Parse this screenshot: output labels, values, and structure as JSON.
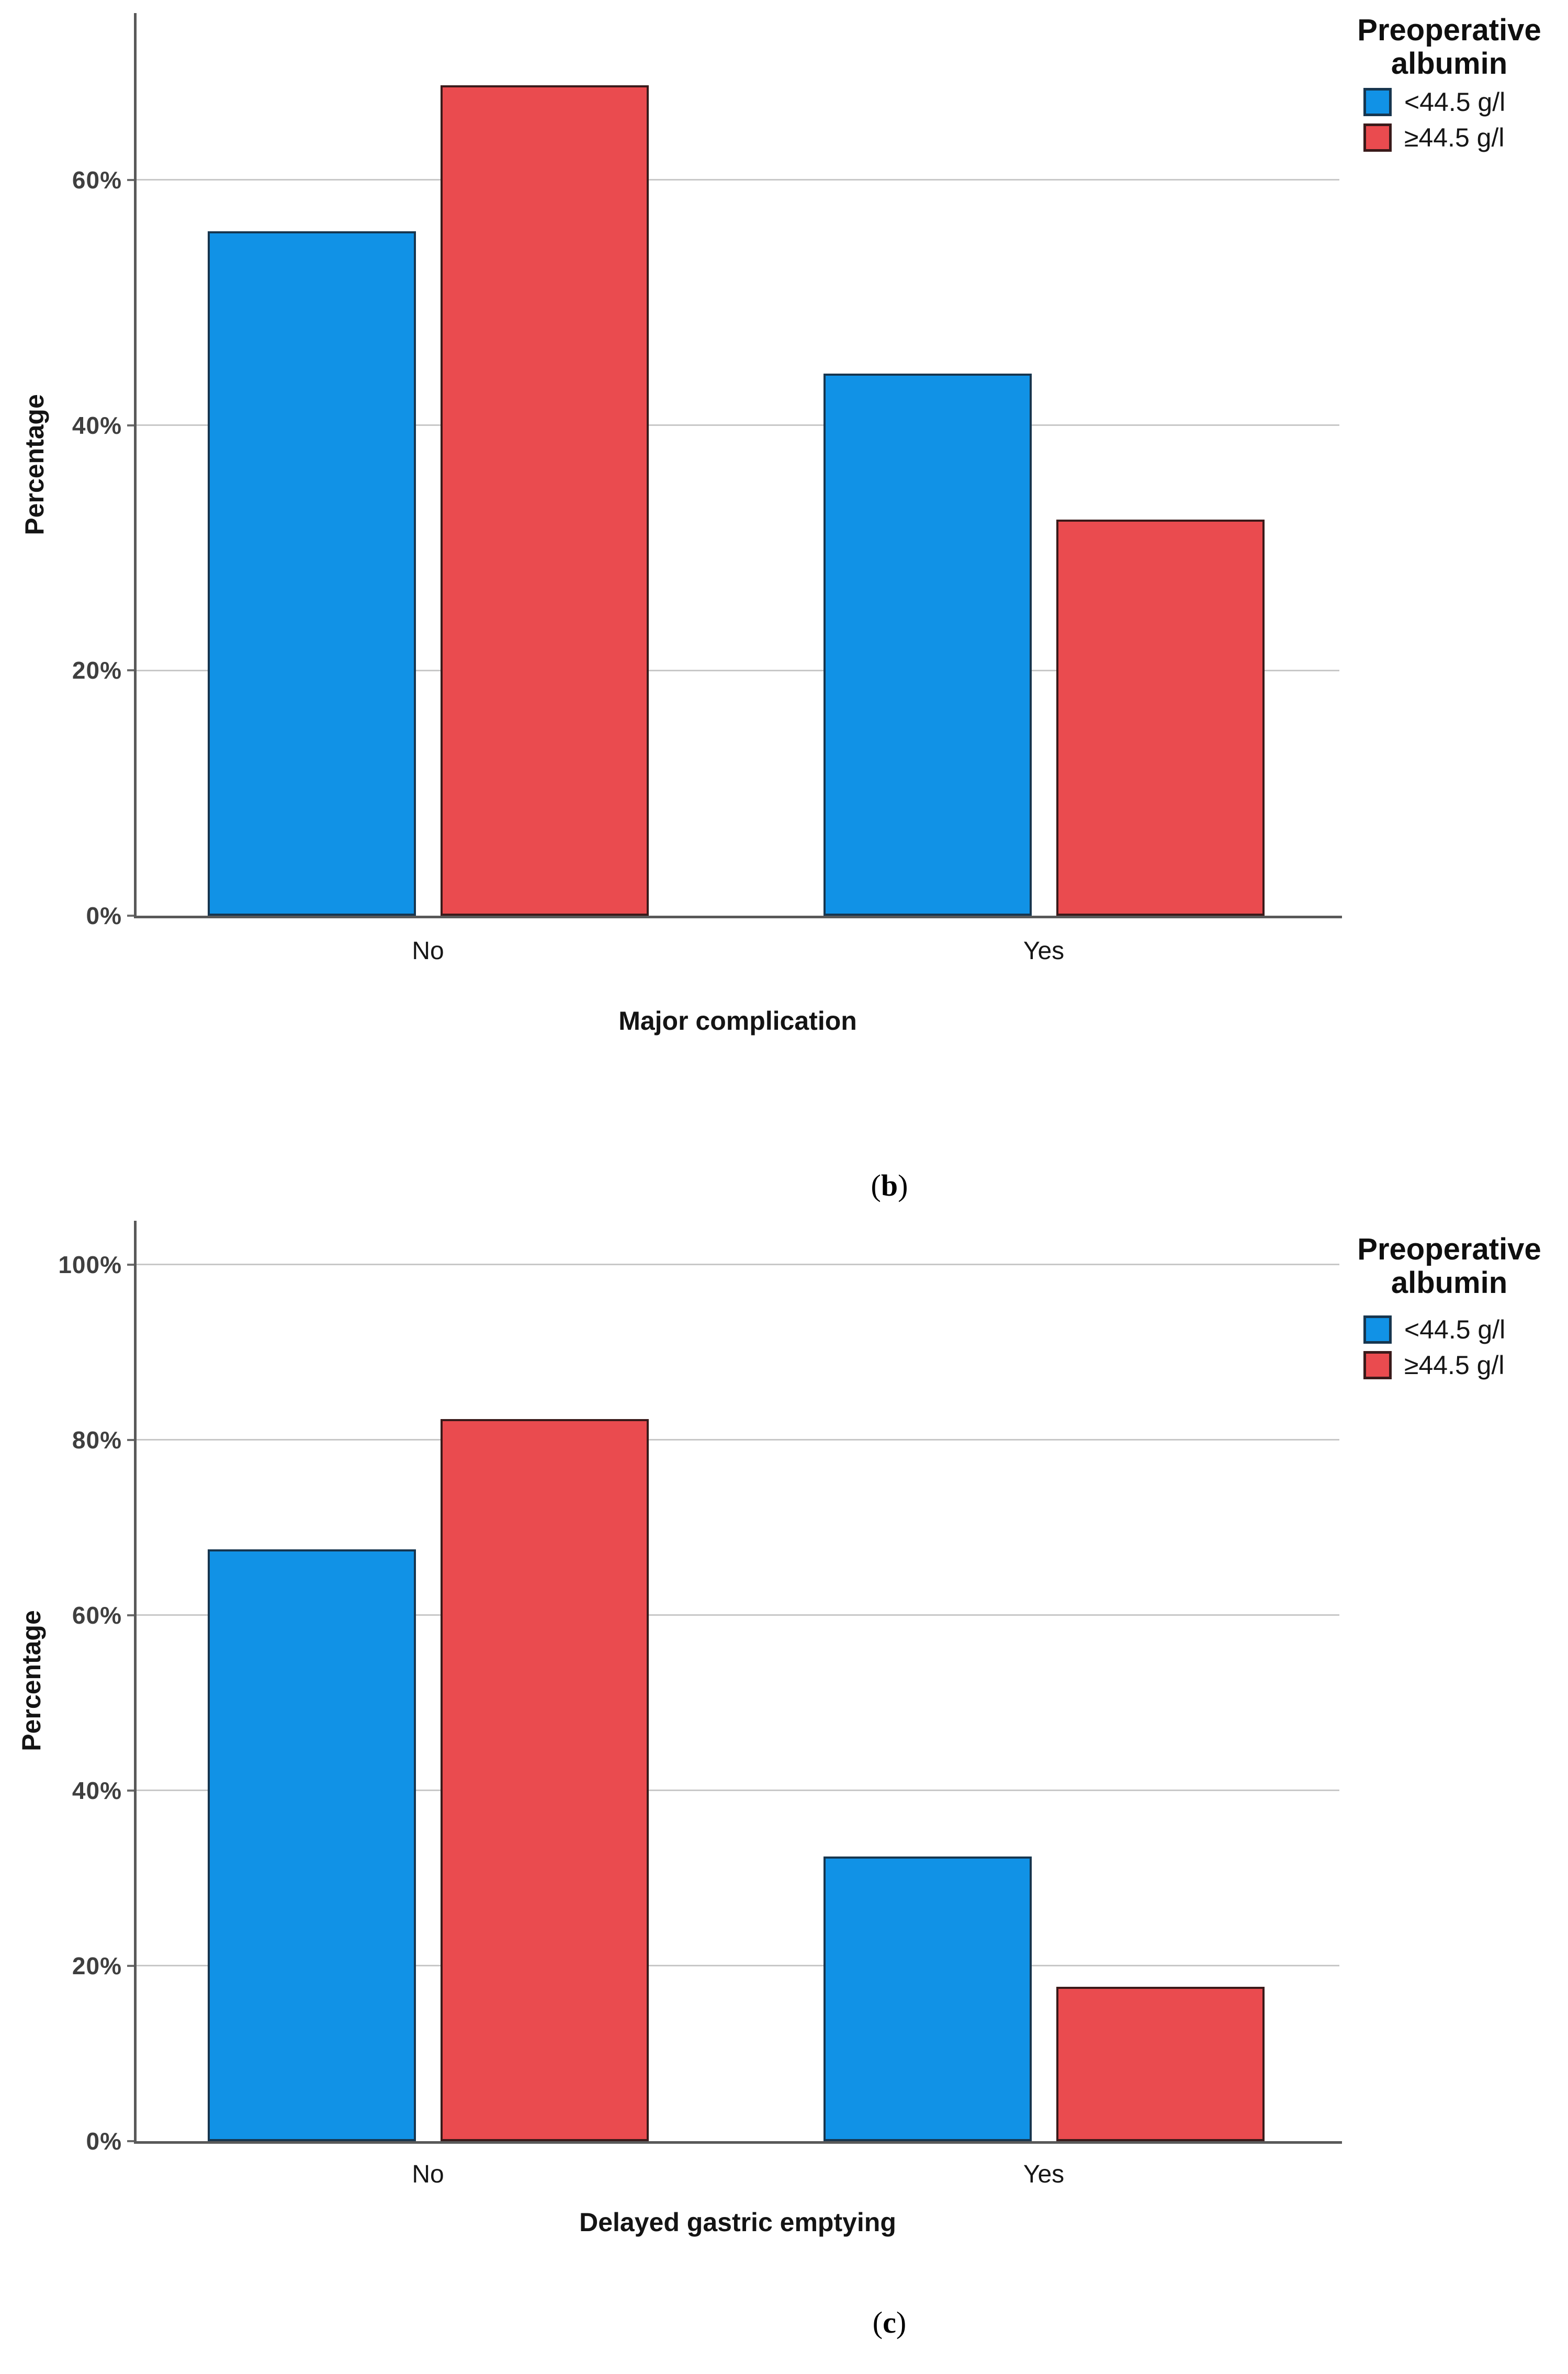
{
  "figure": {
    "background": "#ffffff",
    "legend": {
      "line1": "Preoperative",
      "line2": "albumin"
    },
    "panels": [
      {
        "open": "(",
        "letter": "b",
        "close": ")"
      },
      {
        "open": "(",
        "letter": "c",
        "close": ")"
      }
    ]
  },
  "colors": {
    "blue_fill": "#1192E6",
    "blue_border": "#17364F",
    "red_fill": "#EA4B4F",
    "red_border": "#3A1A1A",
    "gridline": "#C8C8C8",
    "axis_line": "#595959",
    "tick_text": "#3F3F3F"
  },
  "chart_data": [
    {
      "type": "bar",
      "title": "",
      "panel_label": "(b)",
      "categories": [
        "No",
        "Yes"
      ],
      "series": [
        {
          "name": "<44.5 g/l",
          "color": "#1192E6",
          "border": "#17364F",
          "values": [
            55.8,
            44.2
          ]
        },
        {
          "name": "≥44.5 g/l",
          "color": "#EA4B4F",
          "border": "#3A1A1A",
          "values": [
            67.7,
            32.3
          ]
        }
      ],
      "xlabel": "Major complication",
      "ylabel": "Percentage",
      "ylim": [
        0,
        73.6
      ],
      "yticks": [
        0,
        20,
        40,
        60
      ],
      "ytick_labels": [
        "0%",
        "20%",
        "40%",
        "60%"
      ],
      "grid": true,
      "legend_position": "right",
      "legend_title": "Preoperative albumin"
    },
    {
      "type": "bar",
      "title": "",
      "panel_label": "(c)",
      "categories": [
        "No",
        "Yes"
      ],
      "series": [
        {
          "name": "<44.5 g/l",
          "color": "#1192E6",
          "border": "#17364F",
          "values": [
            67.5,
            32.5
          ]
        },
        {
          "name": "≥44.5 g/l",
          "color": "#EA4B4F",
          "border": "#3A1A1A",
          "values": [
            82.4,
            17.6
          ]
        }
      ],
      "xlabel": "Delayed gastric emptying",
      "ylabel": "Percentage",
      "ylim": [
        0,
        105
      ],
      "yticks": [
        0,
        20,
        40,
        60,
        80,
        100
      ],
      "ytick_labels": [
        "0%",
        "20%",
        "40%",
        "60%",
        "80%",
        "100%"
      ],
      "grid": true,
      "legend_position": "right",
      "legend_title": "Preoperative albumin"
    }
  ]
}
